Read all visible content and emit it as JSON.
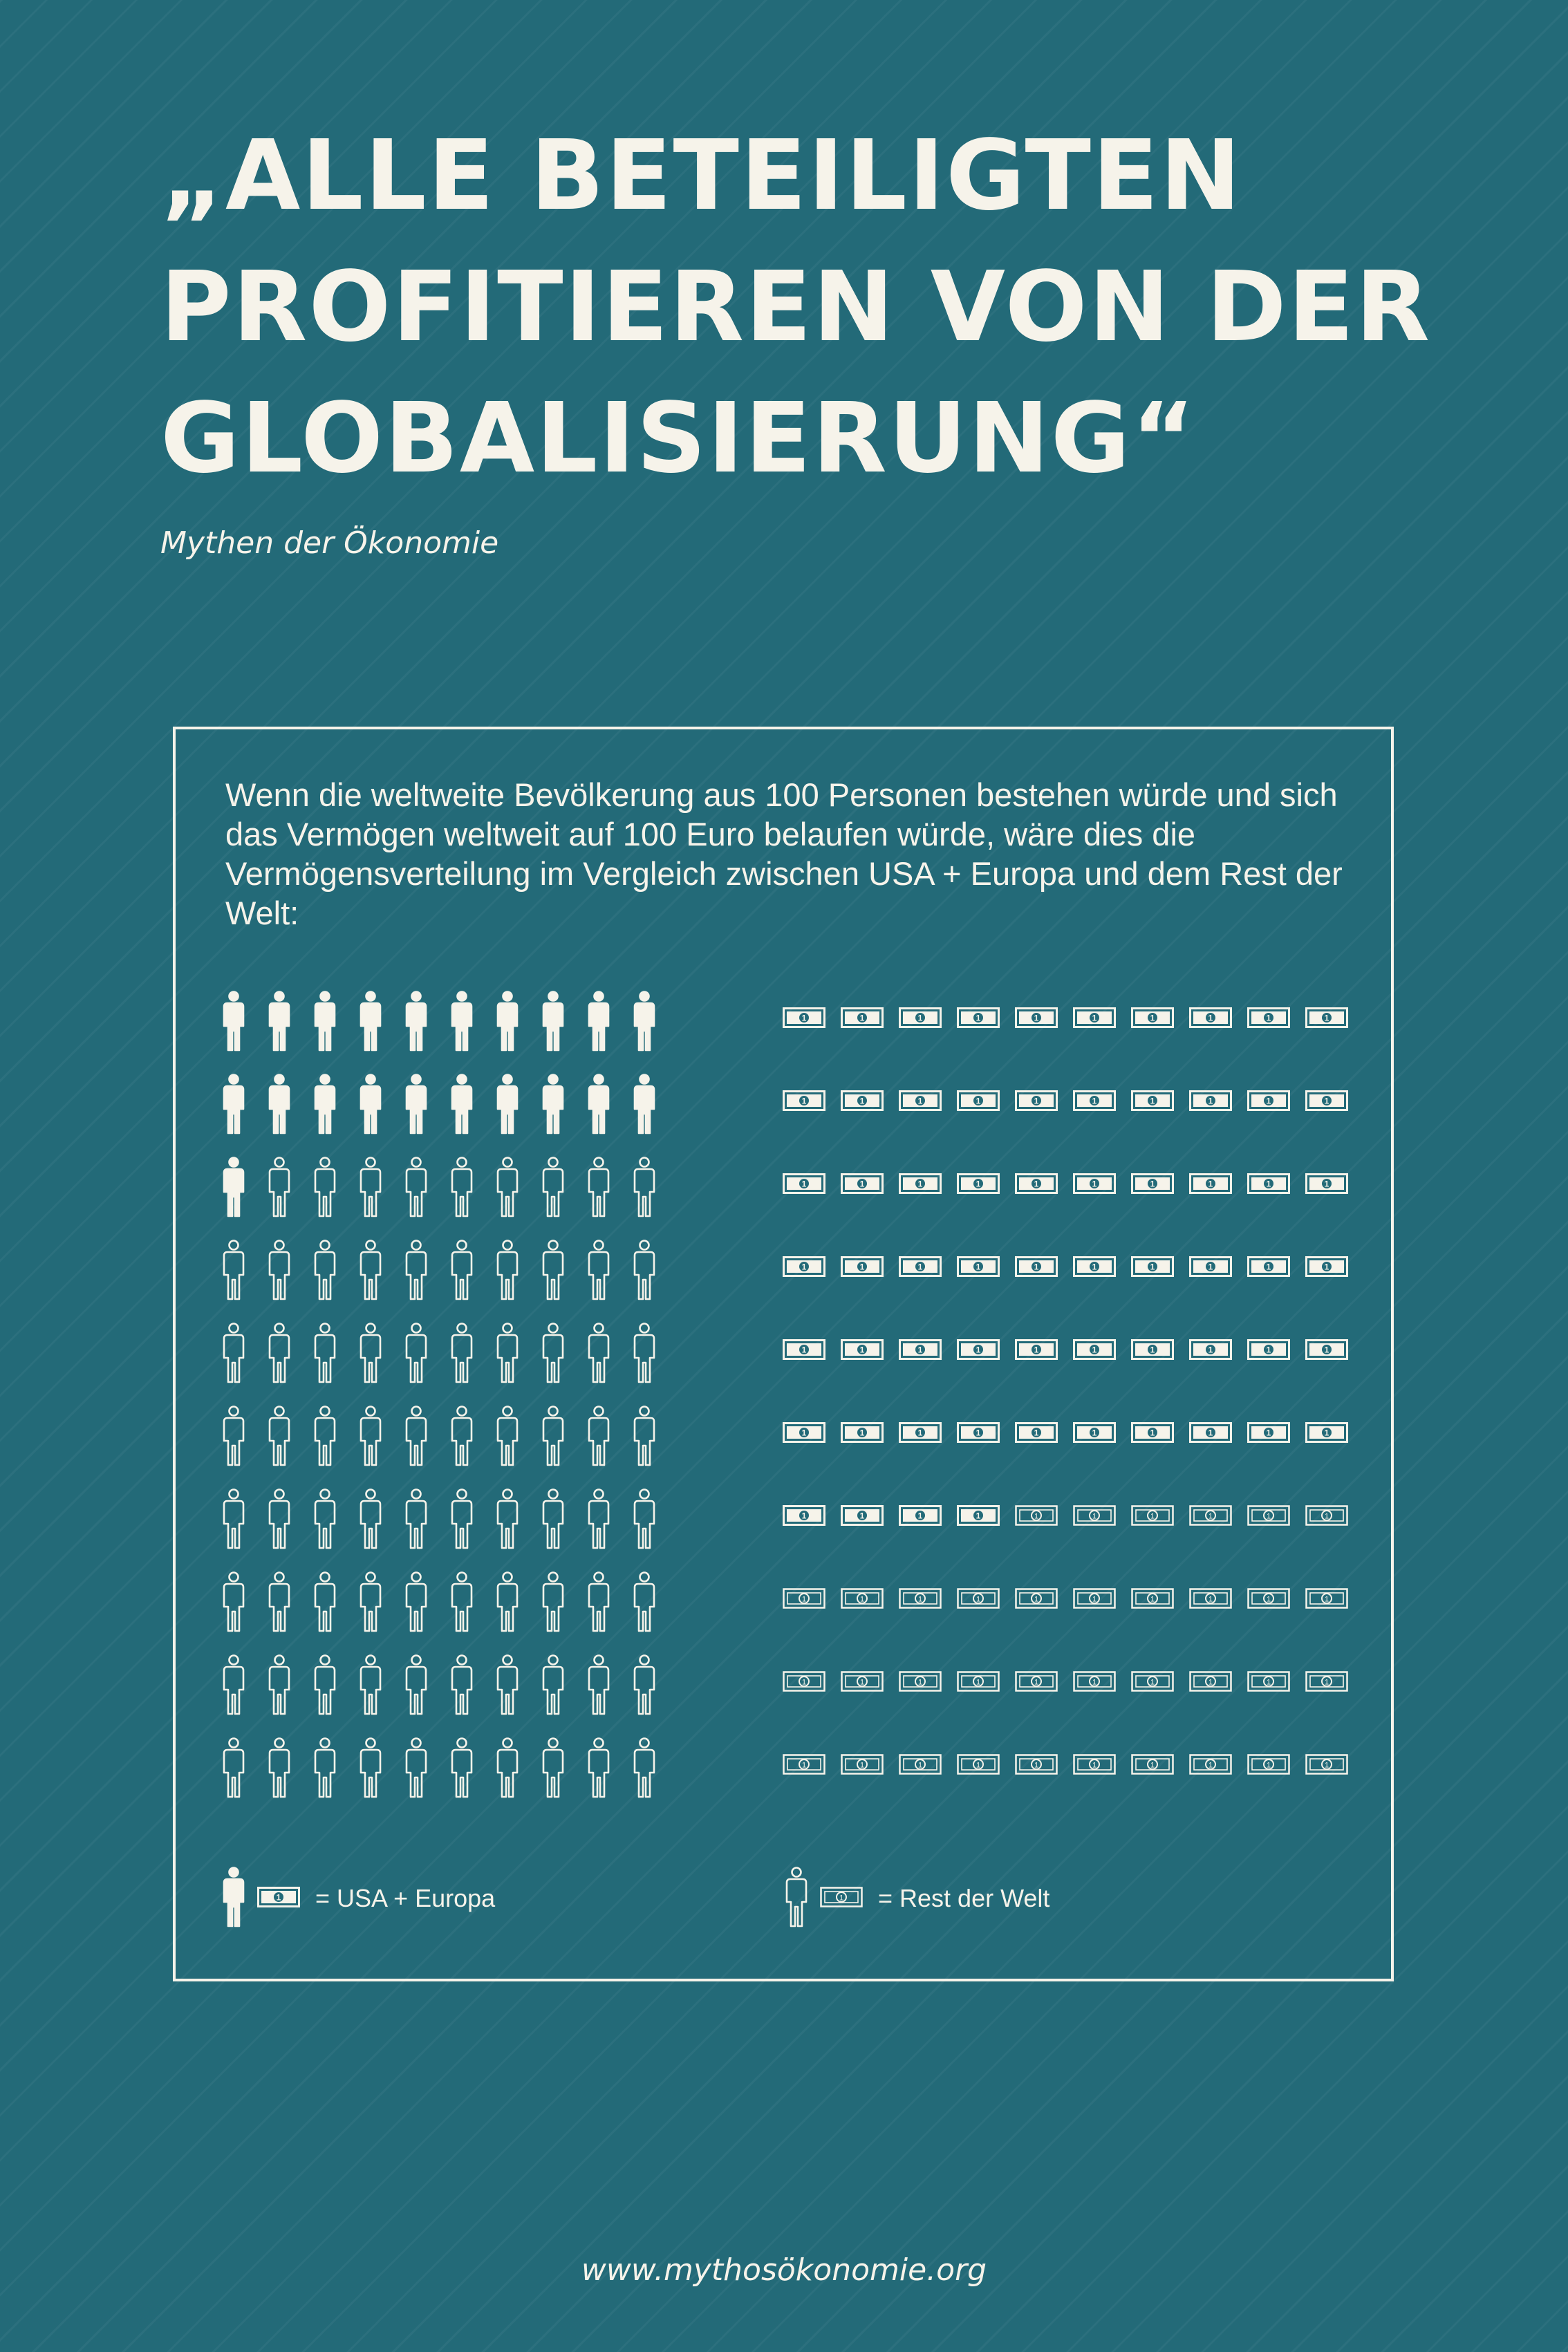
{
  "title": "„ALLE BETEILIGTEN PROFITIEREN VON DER GLOBALISIERUNG“",
  "subtitle": "Mythen der Ökonomie",
  "intro": "Wenn die weltweite Bevölkerung aus 100 Personen bestehen würde und sich das Vermögen weltweit auf 100 Euro belaufen würde, wäre dies die Vermögensverteilung im Vergleich zwischen USA + Europa und dem Rest der Welt:",
  "chart_data": {
    "type": "pictogram",
    "people": {
      "total": 100,
      "usa_europa": 21,
      "rest_der_welt": 79
    },
    "money": {
      "total": 100,
      "usa_europa": 64,
      "rest_der_welt": 36
    },
    "legend": [
      {
        "key": "usa_europa",
        "label": "= USA + Europa",
        "style": "filled"
      },
      {
        "key": "rest_der_welt",
        "label": "= Rest der Welt",
        "style": "outline"
      }
    ]
  },
  "footer": "www.mythosökonomie.org",
  "colors": {
    "background": "#236a78",
    "foreground": "#f6f3ea"
  },
  "icons": {
    "person": "person-icon",
    "banknote": "banknote-icon"
  }
}
